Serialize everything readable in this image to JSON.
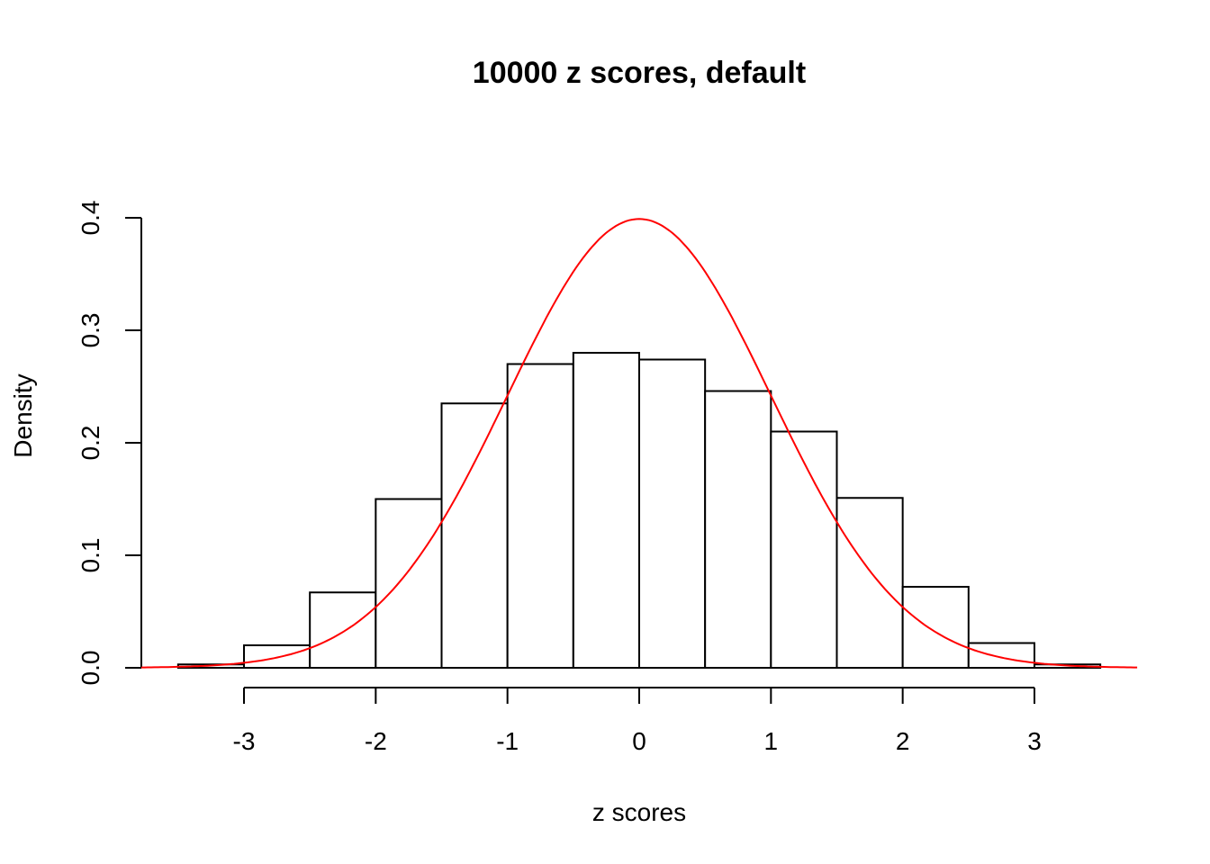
{
  "chart_data": {
    "type": "bar",
    "subtype": "histogram with density curve",
    "title": "10000 z scores, default",
    "xlabel": "z scores",
    "ylabel": "Density",
    "bin_edges": [
      -3.5,
      -3,
      -2.5,
      -2,
      -1.5,
      -1,
      -0.5,
      0,
      0.5,
      1,
      1.5,
      2,
      2.5,
      3,
      3.5
    ],
    "values": [
      0.003,
      0.02,
      0.067,
      0.15,
      0.235,
      0.27,
      0.28,
      0.274,
      0.246,
      0.21,
      0.151,
      0.072,
      0.022,
      0.003
    ],
    "curve": {
      "function": "normal density",
      "mean": 0,
      "sd": 1,
      "color": "#ff0000",
      "x_range": [
        -3.78,
        3.78
      ]
    },
    "xlim": [
      -3.78,
      3.78
    ],
    "ylim": [
      0,
      0.4
    ],
    "x_ticks": [
      "-3",
      "-2",
      "-1",
      "0",
      "1",
      "2",
      "3"
    ],
    "y_ticks": [
      "0.0",
      "0.1",
      "0.2",
      "0.3",
      "0.4"
    ],
    "grid": false,
    "bar_fill": "#ffffff",
    "bar_stroke": "#000000"
  }
}
